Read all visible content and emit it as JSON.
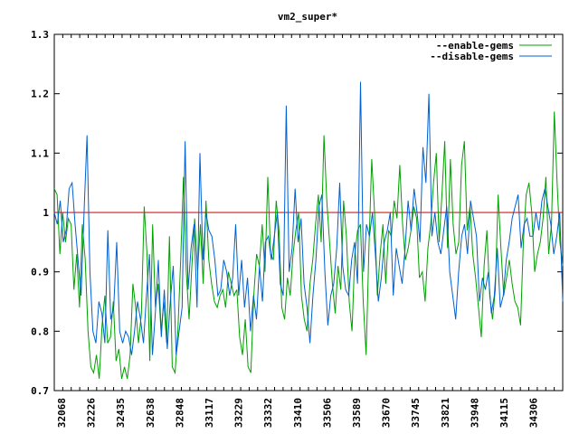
{
  "chart_data": {
    "type": "line",
    "title": "vm2_super*",
    "xlabel": "",
    "ylabel": "",
    "ylim": [
      0.7,
      1.3
    ],
    "yticks": [
      "0.7",
      "0.8",
      "0.9",
      "1",
      "1.1",
      "1.2",
      "1.3"
    ],
    "xtick_labels": [
      "32068",
      "32226",
      "32435",
      "32638",
      "32848",
      "33117",
      "33229",
      "33332",
      "33410",
      "33506",
      "33589",
      "33670",
      "33745",
      "33821",
      "33948",
      "34115",
      "34306"
    ],
    "legend_position": "top-right",
    "reference_line": 1.0,
    "colors": {
      "enable": "#00a000",
      "disable": "#0060d0",
      "reference": "#c00000"
    },
    "series": [
      {
        "name": "--enable-gems",
        "values": [
          1.04,
          1.03,
          0.93,
          1.0,
          0.95,
          0.99,
          0.98,
          0.87,
          0.93,
          0.84,
          0.98,
          0.92,
          0.8,
          0.74,
          0.73,
          0.76,
          0.72,
          0.81,
          0.86,
          0.78,
          0.79,
          0.85,
          0.75,
          0.77,
          0.72,
          0.74,
          0.72,
          0.76,
          0.88,
          0.84,
          0.78,
          0.83,
          1.01,
          0.93,
          0.75,
          0.98,
          0.84,
          0.88,
          0.8,
          0.85,
          0.78,
          0.96,
          0.74,
          0.73,
          0.8,
          0.92,
          1.06,
          0.9,
          0.82,
          0.91,
          0.99,
          0.9,
          0.98,
          0.88,
          1.02,
          0.92,
          0.88,
          0.85,
          0.84,
          0.86,
          0.87,
          0.84,
          0.9,
          0.88,
          0.86,
          0.87,
          0.79,
          0.76,
          0.82,
          0.74,
          0.73,
          0.86,
          0.93,
          0.91,
          0.98,
          0.9,
          1.06,
          0.93,
          0.92,
          1.02,
          0.97,
          0.84,
          0.82,
          0.89,
          0.86,
          0.93,
          0.97,
          1.0,
          0.86,
          0.82,
          0.8,
          0.88,
          0.92,
          0.98,
          1.03,
          0.95,
          1.13,
          1.02,
          0.95,
          0.88,
          0.83,
          0.91,
          0.87,
          1.02,
          0.96,
          0.85,
          0.8,
          0.93,
          0.97,
          0.98,
          0.85,
          0.76,
          0.94,
          1.09,
          1.0,
          0.86,
          0.93,
          0.98,
          0.88,
          0.97,
          0.96,
          1.02,
          0.99,
          1.08,
          0.98,
          0.92,
          0.94,
          0.97,
          1.01,
          0.99,
          0.89,
          0.9,
          0.85,
          0.94,
          0.98,
          1.05,
          1.1,
          0.95,
          1.03,
          1.12,
          0.94,
          1.09,
          0.98,
          0.93,
          0.95,
          1.08,
          1.12,
          0.97,
          1.01,
          0.93,
          0.89,
          0.84,
          0.79,
          0.91,
          0.97,
          0.86,
          0.82,
          0.87,
          1.03,
          0.94,
          0.86,
          0.89,
          0.92,
          0.88,
          0.85,
          0.84,
          0.81,
          0.95,
          1.03,
          1.05,
          1.0,
          0.9,
          0.93,
          0.95,
          0.99,
          1.06,
          0.93,
          0.98,
          1.17,
          1.05,
          0.95,
          0.91
        ]
      },
      {
        "name": "--disable-gems",
        "values": [
          1.0,
          0.98,
          1.02,
          0.95,
          0.97,
          1.04,
          1.05,
          0.98,
          0.92,
          0.86,
          1.0,
          1.13,
          0.9,
          0.8,
          0.78,
          0.85,
          0.83,
          0.78,
          0.97,
          0.82,
          0.84,
          0.95,
          0.8,
          0.78,
          0.8,
          0.79,
          0.76,
          0.8,
          0.85,
          0.82,
          0.78,
          0.86,
          0.93,
          0.76,
          0.83,
          0.92,
          0.79,
          0.87,
          0.77,
          0.85,
          0.91,
          0.76,
          0.8,
          0.84,
          1.12,
          0.87,
          0.94,
          0.98,
          0.84,
          1.1,
          0.92,
          1.0,
          0.97,
          0.96,
          0.92,
          0.86,
          0.87,
          0.92,
          0.9,
          0.86,
          0.89,
          0.98,
          0.86,
          0.92,
          0.84,
          0.89,
          0.8,
          0.86,
          0.82,
          0.91,
          0.85,
          0.95,
          0.96,
          0.92,
          0.96,
          1.0,
          0.88,
          0.86,
          1.18,
          0.9,
          0.94,
          1.04,
          0.95,
          0.99,
          0.88,
          0.84,
          0.78,
          0.86,
          0.92,
          1.01,
          1.03,
          0.9,
          0.81,
          0.86,
          0.88,
          0.94,
          1.05,
          0.91,
          0.87,
          0.86,
          0.92,
          0.95,
          0.88,
          1.22,
          0.9,
          0.98,
          0.96,
          1.0,
          0.93,
          0.85,
          0.89,
          0.95,
          0.97,
          1.0,
          0.86,
          0.94,
          0.91,
          0.88,
          0.94,
          1.02,
          0.97,
          1.04,
          1.0,
          0.95,
          1.11,
          1.05,
          1.2,
          0.96,
          1.0,
          0.95,
          0.93,
          0.97,
          1.01,
          0.9,
          0.86,
          0.82,
          0.9,
          0.96,
          0.98,
          0.93,
          1.02,
          0.99,
          0.96,
          0.85,
          0.89,
          0.87,
          0.9,
          0.83,
          0.86,
          0.94,
          0.84,
          0.86,
          0.92,
          0.95,
          0.99,
          1.01,
          1.03,
          0.94,
          0.98,
          0.99,
          0.96,
          0.96,
          1.0,
          0.97,
          1.02,
          1.04,
          1.01,
          0.98,
          0.93,
          0.96,
          1.0,
          0.85
        ]
      }
    ]
  }
}
